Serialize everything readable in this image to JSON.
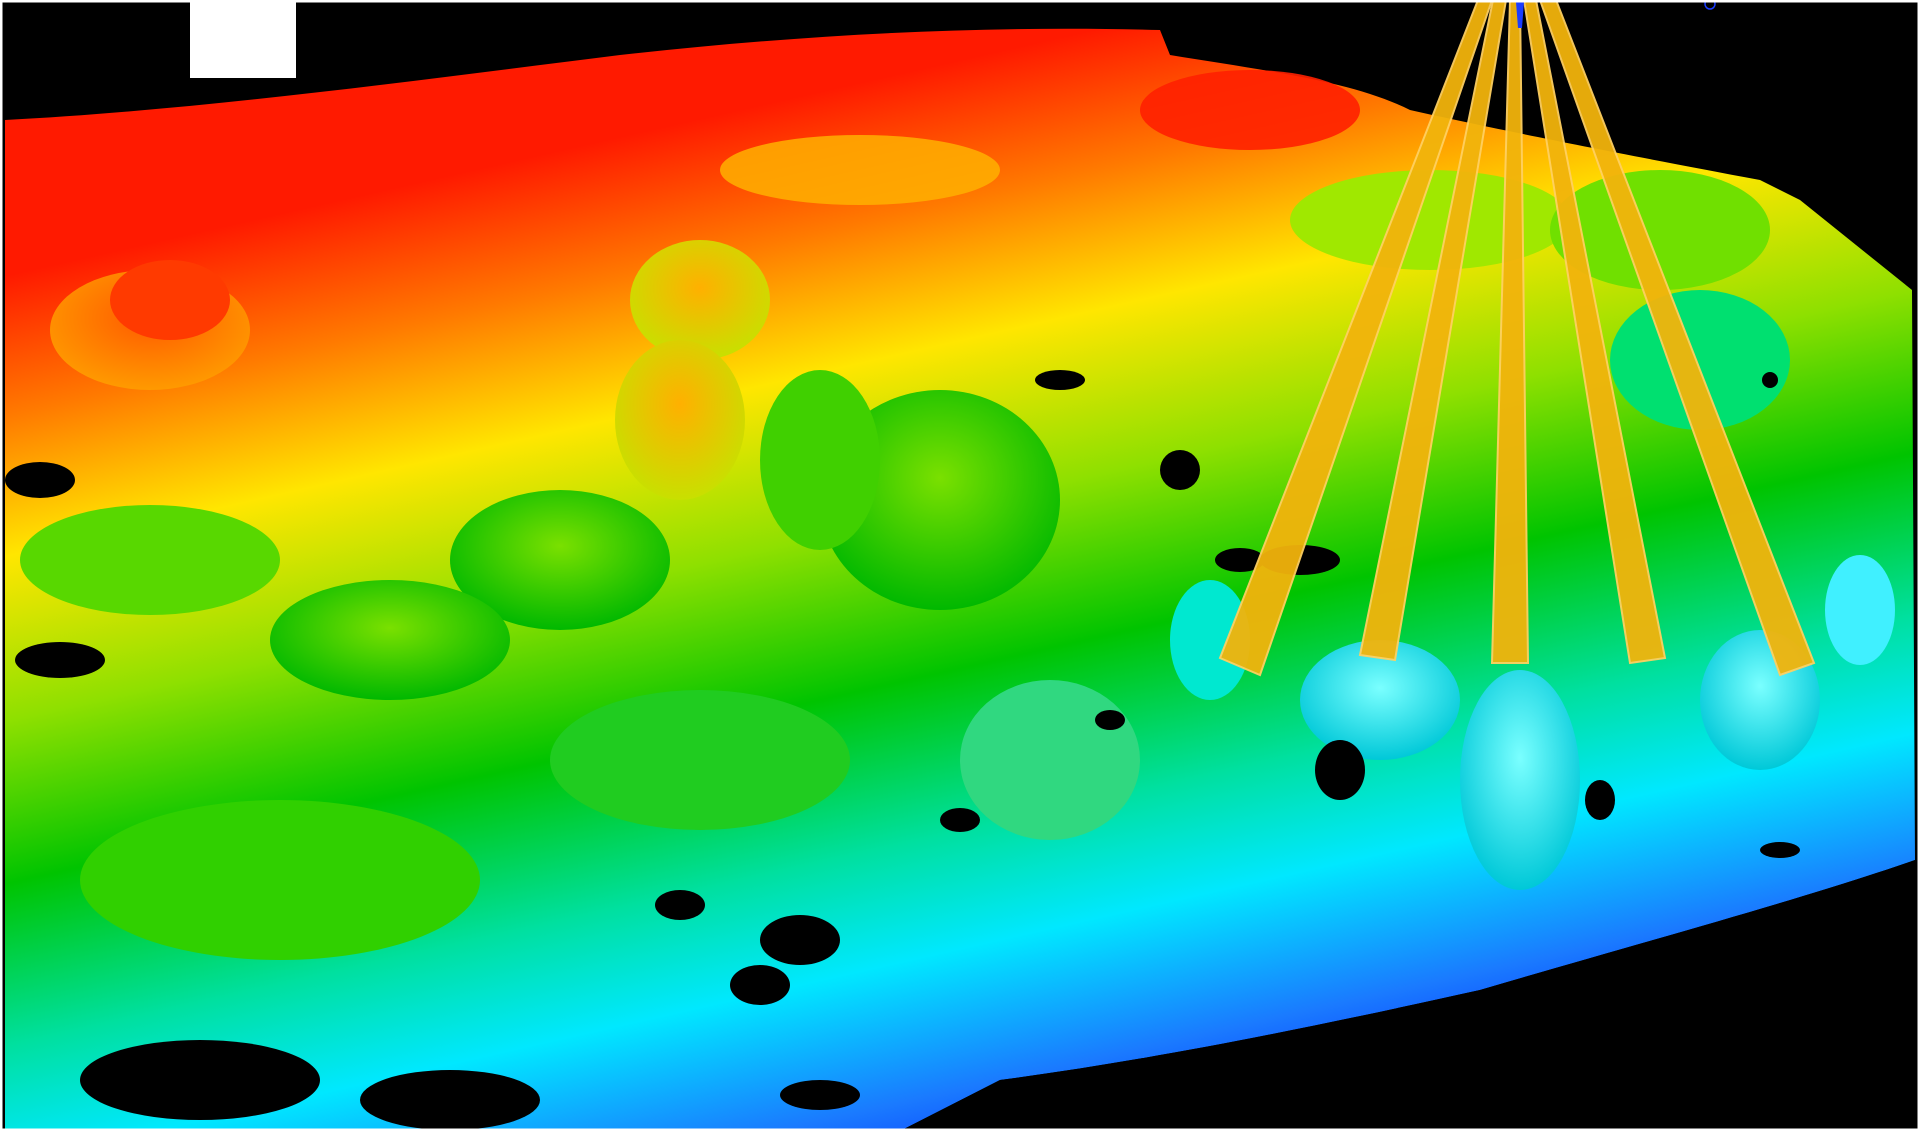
{
  "scene": {
    "background_color": "#000000",
    "frame_color": "#ffffff",
    "overlay_patch_color": "#ffffff",
    "beam_color": "#f2b40c",
    "beam_count": 5,
    "sensor_marker_color": "#1a3cff",
    "colormap": [
      "#ff0000",
      "#ff8000",
      "#ffff00",
      "#00c800",
      "#00ffff",
      "#0000ff"
    ]
  }
}
